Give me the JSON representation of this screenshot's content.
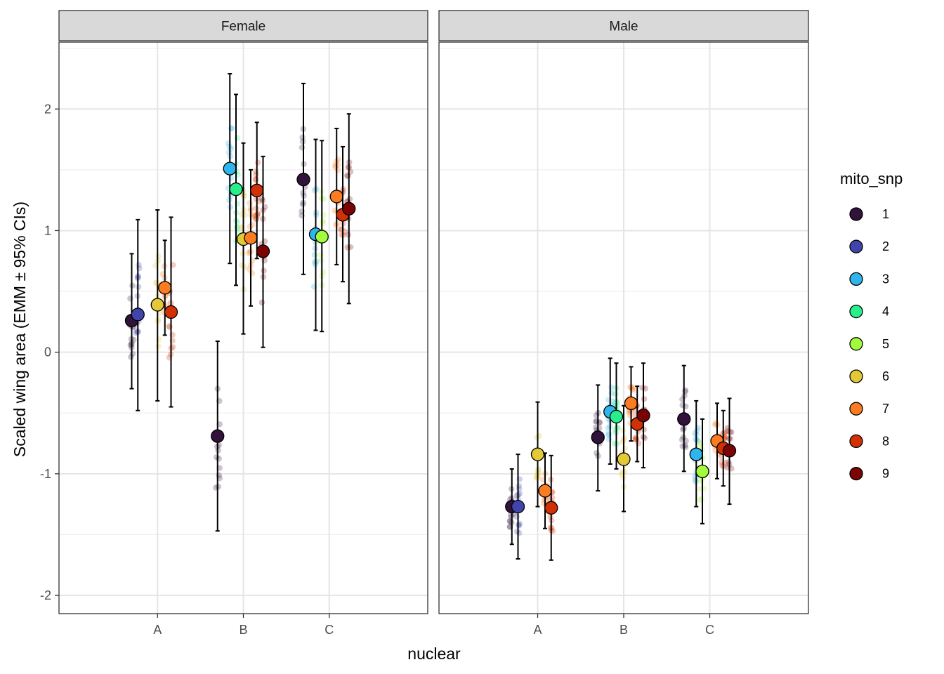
{
  "chart_data": {
    "type": "scatter",
    "title": "",
    "xlabel": "nuclear",
    "ylabel": "Scaled wing area (EMM ± 95% CIs)",
    "categories": [
      "A",
      "B",
      "C"
    ],
    "ylim": [
      -2.15,
      2.55
    ],
    "yticks": [
      -2,
      -1,
      0,
      1,
      2
    ],
    "ytick_labels": [
      "-2",
      "-1",
      "0",
      "1",
      "2"
    ],
    "grid": true,
    "legend": {
      "title": "mito_snp",
      "placement": "right",
      "entries": [
        "1",
        "2",
        "3",
        "4",
        "5",
        "6",
        "7",
        "8",
        "9"
      ]
    },
    "colors": {
      "1": "#30123b",
      "2": "#4145ab",
      "3": "#2fb4ec",
      "4": "#29ef8b",
      "5": "#a2fc3c",
      "6": "#e3c936",
      "7": "#fb7c21",
      "8": "#d23105",
      "9": "#7a0403"
    },
    "panels": [
      {
        "label": "Female",
        "series": [
          {
            "nuclear": "A",
            "mito_snp": "1",
            "emm": 0.26,
            "lower": -0.3,
            "upper": 0.81
          },
          {
            "nuclear": "A",
            "mito_snp": "2",
            "emm": 0.31,
            "lower": -0.48,
            "upper": 1.09
          },
          {
            "nuclear": "A",
            "mito_snp": "6",
            "emm": 0.39,
            "lower": -0.4,
            "upper": 1.17
          },
          {
            "nuclear": "A",
            "mito_snp": "7",
            "emm": 0.53,
            "lower": 0.14,
            "upper": 0.92
          },
          {
            "nuclear": "A",
            "mito_snp": "8",
            "emm": 0.33,
            "lower": -0.45,
            "upper": 1.11
          },
          {
            "nuclear": "B",
            "mito_snp": "1",
            "emm": -0.69,
            "lower": -1.47,
            "upper": 0.09
          },
          {
            "nuclear": "B",
            "mito_snp": "3",
            "emm": 1.51,
            "lower": 0.73,
            "upper": 2.29
          },
          {
            "nuclear": "B",
            "mito_snp": "4",
            "emm": 1.34,
            "lower": 0.55,
            "upper": 2.12
          },
          {
            "nuclear": "B",
            "mito_snp": "6",
            "emm": 0.93,
            "lower": 0.15,
            "upper": 1.72
          },
          {
            "nuclear": "B",
            "mito_snp": "7",
            "emm": 0.94,
            "lower": 0.38,
            "upper": 1.5
          },
          {
            "nuclear": "B",
            "mito_snp": "8",
            "emm": 1.33,
            "lower": 0.77,
            "upper": 1.89
          },
          {
            "nuclear": "B",
            "mito_snp": "9",
            "emm": 0.83,
            "lower": 0.04,
            "upper": 1.61
          },
          {
            "nuclear": "C",
            "mito_snp": "1",
            "emm": 1.42,
            "lower": 0.64,
            "upper": 2.21
          },
          {
            "nuclear": "C",
            "mito_snp": "3",
            "emm": 0.97,
            "lower": 0.18,
            "upper": 1.75
          },
          {
            "nuclear": "C",
            "mito_snp": "5",
            "emm": 0.95,
            "lower": 0.17,
            "upper": 1.74
          },
          {
            "nuclear": "C",
            "mito_snp": "7",
            "emm": 1.28,
            "lower": 0.72,
            "upper": 1.84
          },
          {
            "nuclear": "C",
            "mito_snp": "8",
            "emm": 1.13,
            "lower": 0.58,
            "upper": 1.69
          },
          {
            "nuclear": "C",
            "mito_snp": "9",
            "emm": 1.18,
            "lower": 0.4,
            "upper": 1.96
          }
        ]
      },
      {
        "label": "Male",
        "series": [
          {
            "nuclear": "A",
            "mito_snp": "1",
            "emm": -1.27,
            "lower": -1.58,
            "upper": -0.96
          },
          {
            "nuclear": "A",
            "mito_snp": "2",
            "emm": -1.27,
            "lower": -1.7,
            "upper": -0.84
          },
          {
            "nuclear": "A",
            "mito_snp": "6",
            "emm": -0.84,
            "lower": -1.27,
            "upper": -0.41
          },
          {
            "nuclear": "A",
            "mito_snp": "7",
            "emm": -1.14,
            "lower": -1.45,
            "upper": -0.83
          },
          {
            "nuclear": "A",
            "mito_snp": "8",
            "emm": -1.28,
            "lower": -1.71,
            "upper": -0.85
          },
          {
            "nuclear": "B",
            "mito_snp": "1",
            "emm": -0.7,
            "lower": -1.14,
            "upper": -0.27
          },
          {
            "nuclear": "B",
            "mito_snp": "3",
            "emm": -0.49,
            "lower": -0.92,
            "upper": -0.05
          },
          {
            "nuclear": "B",
            "mito_snp": "4",
            "emm": -0.53,
            "lower": -0.96,
            "upper": -0.09
          },
          {
            "nuclear": "B",
            "mito_snp": "6",
            "emm": -0.88,
            "lower": -1.31,
            "upper": -0.44
          },
          {
            "nuclear": "B",
            "mito_snp": "7",
            "emm": -0.42,
            "lower": -0.73,
            "upper": -0.12
          },
          {
            "nuclear": "B",
            "mito_snp": "8",
            "emm": -0.59,
            "lower": -0.9,
            "upper": -0.28
          },
          {
            "nuclear": "B",
            "mito_snp": "9",
            "emm": -0.52,
            "lower": -0.95,
            "upper": -0.09
          },
          {
            "nuclear": "C",
            "mito_snp": "1",
            "emm": -0.55,
            "lower": -0.98,
            "upper": -0.11
          },
          {
            "nuclear": "C",
            "mito_snp": "3",
            "emm": -0.84,
            "lower": -1.27,
            "upper": -0.4
          },
          {
            "nuclear": "C",
            "mito_snp": "5",
            "emm": -0.98,
            "lower": -1.41,
            "upper": -0.55
          },
          {
            "nuclear": "C",
            "mito_snp": "7",
            "emm": -0.73,
            "lower": -1.04,
            "upper": -0.42
          },
          {
            "nuclear": "C",
            "mito_snp": "8",
            "emm": -0.79,
            "lower": -1.1,
            "upper": -0.48
          },
          {
            "nuclear": "C",
            "mito_snp": "9",
            "emm": -0.81,
            "lower": -1.25,
            "upper": -0.38
          }
        ]
      }
    ]
  }
}
